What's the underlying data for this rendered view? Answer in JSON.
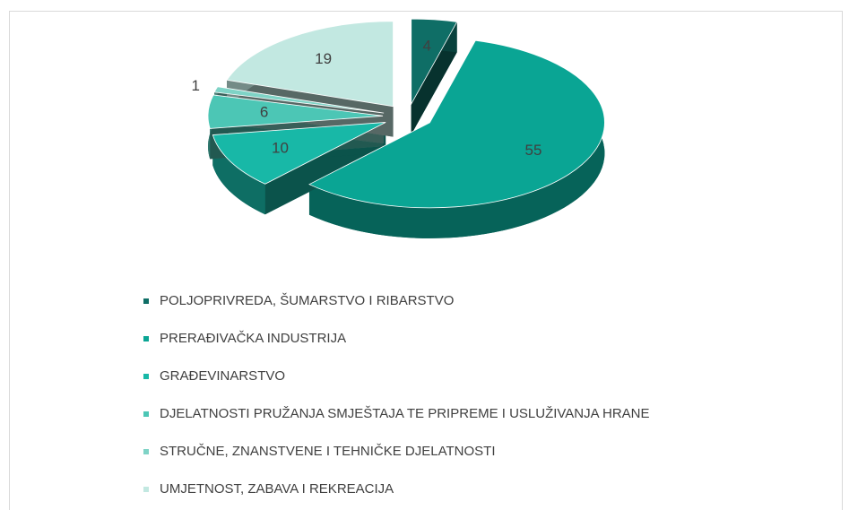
{
  "chart_data": {
    "type": "pie",
    "categories": [
      "POLJOPRIVREDA, ŠUMARSTVO I RIBARSTVO",
      "PRERAĐIVAČKA INDUSTRIJA",
      "GRAĐEVINARSTVO",
      "DJELATNOSTI PRUŽANJA SMJEŠTAJA TE PRIPREME I USLUŽIVANJA HRANE",
      "STRUČNE, ZNANSTVENE I TEHNIČKE DJELATNOSTI",
      "UMJETNOST, ZABAVA I REKREACIJA"
    ],
    "values": [
      4,
      55,
      10,
      6,
      1,
      19
    ],
    "colors": [
      "#0f6e66",
      "#0aa594",
      "#18b8a7",
      "#4cc6b5",
      "#7fd3c6",
      "#c2e8e1"
    ],
    "legend": "bottom"
  }
}
